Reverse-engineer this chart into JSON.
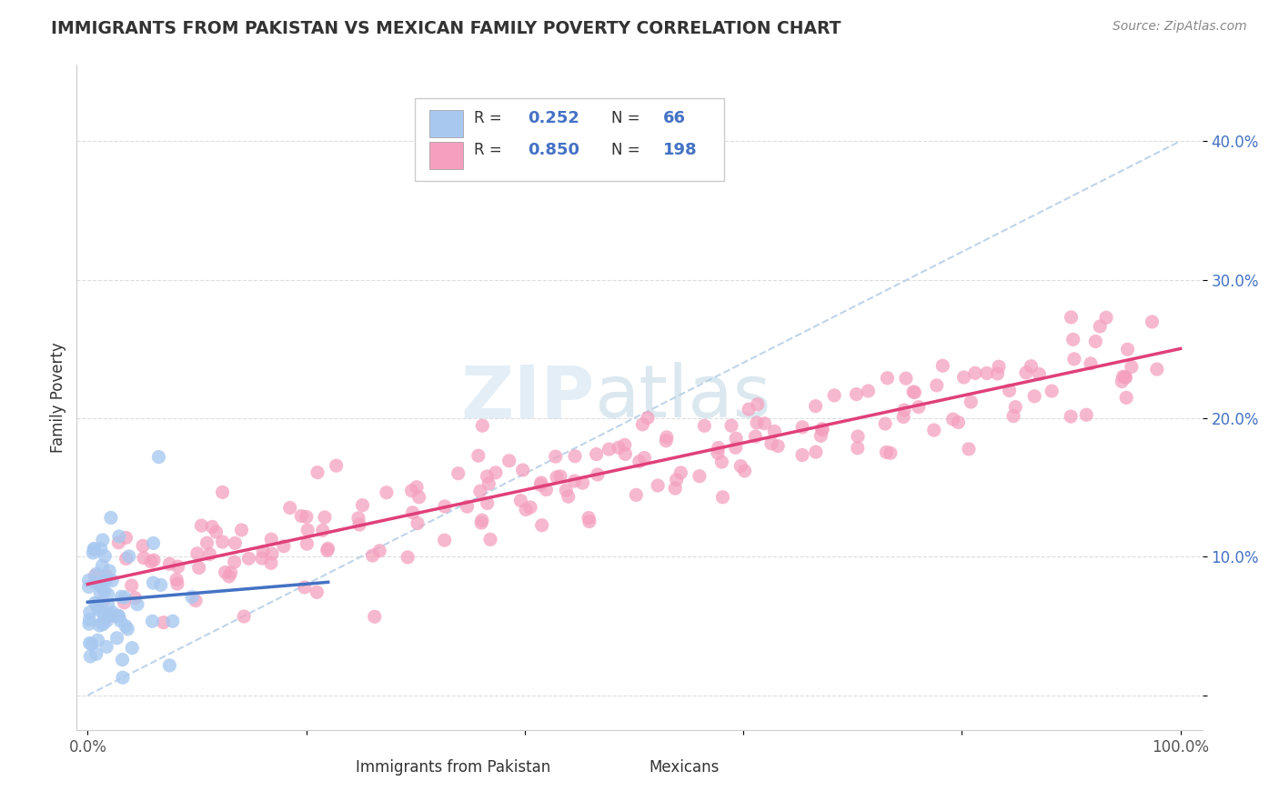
{
  "title": "IMMIGRANTS FROM PAKISTAN VS MEXICAN FAMILY POVERTY CORRELATION CHART",
  "source": "Source: ZipAtlas.com",
  "ylabel": "Family Poverty",
  "watermark_zip": "ZIP",
  "watermark_atlas": "atlas",
  "r_pakistan": 0.252,
  "n_pakistan": 66,
  "r_mexican": 0.85,
  "n_mexican": 198,
  "pakistan_color": "#a8c8f0",
  "mexican_color": "#f4a0be",
  "pakistan_line_color": "#4472c4",
  "mexican_line_color": "#e0407a",
  "diag_line_color": "#b8d0e8",
  "title_color": "#333333",
  "source_color": "#888888",
  "tick_color_y": "#4472c4",
  "tick_color_x": "#555555",
  "grid_color": "#dddddd",
  "legend_text_color": "#333333",
  "legend_value_color": "#4472c4",
  "xlim": [
    -0.01,
    1.02
  ],
  "ylim": [
    -0.025,
    0.455
  ],
  "xticks": [
    0.0,
    0.2,
    0.4,
    0.6,
    0.8,
    1.0
  ],
  "xticklabels": [
    "0.0%",
    "",
    "",
    "",
    "",
    "100.0%"
  ],
  "yticks": [
    0.0,
    0.1,
    0.2,
    0.3,
    0.4
  ],
  "yticklabels": [
    "",
    "10.0%",
    "20.0%",
    "30.0%",
    "40.0%"
  ],
  "legend_label1": "Immigrants from Pakistan",
  "legend_label2": "Mexicans"
}
